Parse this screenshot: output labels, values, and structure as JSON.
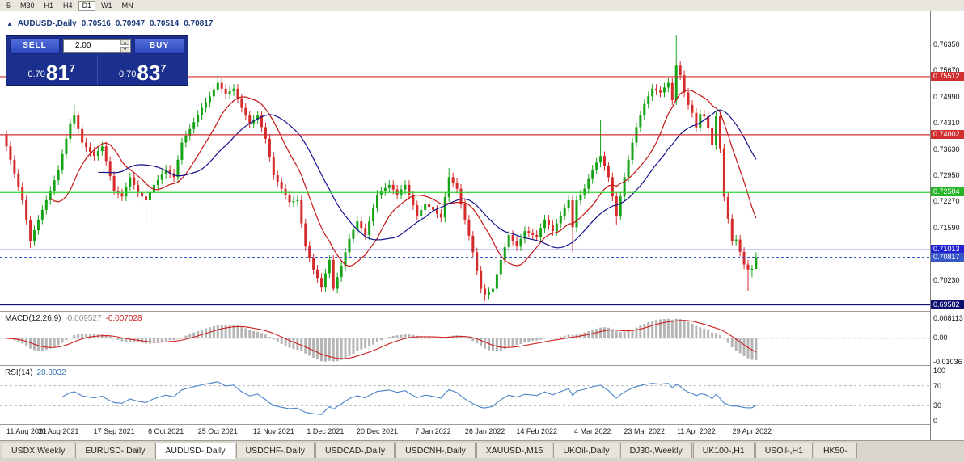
{
  "toolbar": {
    "periods": [
      {
        "label": "5",
        "active": false
      },
      {
        "label": "M30",
        "active": false
      },
      {
        "label": "H1",
        "active": false
      },
      {
        "label": "H4",
        "active": false
      },
      {
        "label": "D1",
        "active": true
      },
      {
        "label": "W1",
        "active": false
      },
      {
        "label": "MN",
        "active": false
      }
    ]
  },
  "ohlc_header": {
    "marker": "▲",
    "symbol": "AUDUSD-,Daily",
    "open": "0.70516",
    "high": "0.70947",
    "low": "0.70514",
    "close": "0.70817"
  },
  "trade_panel": {
    "sell_label": "SELL",
    "buy_label": "BUY",
    "volume": "2.00",
    "sell_price": {
      "prefix": "0.70",
      "big": "81",
      "sup": "7"
    },
    "buy_price": {
      "prefix": "0.70",
      "big": "83",
      "sup": "7"
    }
  },
  "price_axis_labels": [
    "0.76350",
    "0.75670",
    "0.74990",
    "0.74310",
    "0.73630",
    "0.72950",
    "0.72270",
    "0.71590",
    "0.70910",
    "0.70230",
    "0.69550"
  ],
  "macd_panel": {
    "title": "MACD(12,26,9)",
    "main_value": "-0.009527",
    "signal_value": "-0.007028",
    "axis_labels": [
      "0.008113",
      "0.00",
      "-0.01036"
    ]
  },
  "rsi_panel": {
    "title": "RSI(14)",
    "value": "28.8032",
    "axis_labels": [
      "100",
      "70",
      "30",
      "0"
    ],
    "levels": [
      70,
      30
    ]
  },
  "date_axis": {
    "labels": [
      {
        "i": 0,
        "text": "11 Aug 2021"
      },
      {
        "i": 13,
        "text": "30 Aug 2021"
      },
      {
        "i": 27,
        "text": "17 Sep 2021"
      },
      {
        "i": 40,
        "text": "6 Oct 2021"
      },
      {
        "i": 53,
        "text": "25 Oct 2021"
      },
      {
        "i": 67,
        "text": "12 Nov 2021"
      },
      {
        "i": 80,
        "text": "1 Dec 2021"
      },
      {
        "i": 93,
        "text": "20 Dec 2021"
      },
      {
        "i": 107,
        "text": "7 Jan 2022"
      },
      {
        "i": 120,
        "text": "26 Jan 2022"
      },
      {
        "i": 133,
        "text": "14 Feb 2022"
      },
      {
        "i": 147,
        "text": "4 Mar 2022"
      },
      {
        "i": 160,
        "text": "23 Mar 2022"
      },
      {
        "i": 173,
        "text": "11 Apr 2022"
      },
      {
        "i": 187,
        "text": "29 Apr 2022"
      }
    ]
  },
  "tabbar": {
    "active": "AUDUSD-,Daily",
    "tabs": [
      "USDX,Weekly",
      "EURUSD-,Daily",
      "AUDUSD-,Daily",
      "USDCHF-,Daily",
      "USDCAD-,Daily",
      "USDCNH-,Daily",
      "XAUUSD-,M15",
      "UKOil-,Daily",
      "DJ30-,Weekly",
      "UK100-,H1",
      "USOil-,H1",
      "HK50-"
    ]
  },
  "chart_data": {
    "type": "candlestick",
    "symbol": "AUDUSD-",
    "timeframe": "Daily",
    "title": "AUDUSD-,Daily",
    "last_ohlc": {
      "open": 0.70516,
      "high": 0.70947,
      "low": 0.70514,
      "close": 0.70817
    },
    "bid": 0.70817,
    "ask": 0.70837,
    "colors": {
      "up": "#17a317",
      "down": "#d52b2b",
      "ma_fast": "#c41414",
      "ma_slow": "#13138c",
      "macd_hist": "#b5b5b5",
      "macd_signal": "#cc2020",
      "rsi": "#4a82c8"
    },
    "moving_averages": [
      {
        "period": 12,
        "color": "#c41414"
      },
      {
        "period": 24,
        "color": "#13138c"
      }
    ],
    "hlines": [
      {
        "price": 0.75512,
        "color": "#d23030",
        "dash": false
      },
      {
        "price": 0.74002,
        "color": "#d23030",
        "dash": false
      },
      {
        "price": 0.72504,
        "color": "#2fd22f",
        "dash": false
      },
      {
        "price": 0.71013,
        "color": "#2424d2",
        "dash": false
      },
      {
        "price": 0.69582,
        "color": "#0d0d72",
        "dash": false
      },
      {
        "price": 0.70817,
        "color": "#3858c8",
        "dash": true
      }
    ],
    "badges": [
      {
        "label": "0.75512",
        "price": 0.75512,
        "color": "#d23030"
      },
      {
        "label": "0.74002",
        "price": 0.74002,
        "color": "#d23030"
      },
      {
        "label": "0.72504",
        "price": 0.72504,
        "color": "#28b428"
      },
      {
        "label": "0.71013",
        "price": 0.71013,
        "color": "#2424d2"
      },
      {
        "label": "0.70817",
        "price": 0.70817,
        "color": "#3858c8"
      },
      {
        "label": "0.69582",
        "price": 0.69582,
        "color": "#0d0d72"
      }
    ],
    "candles": [
      [
        0.74,
        0.7412,
        0.7358,
        0.737
      ],
      [
        0.737,
        0.7382,
        0.7323,
        0.7335
      ],
      [
        0.7335,
        0.7347,
        0.7288,
        0.73
      ],
      [
        0.73,
        0.7312,
        0.7253,
        0.7265
      ],
      [
        0.7265,
        0.7277,
        0.7218,
        0.723
      ],
      [
        0.723,
        0.7242,
        0.7166,
        0.7178
      ],
      [
        0.7178,
        0.719,
        0.7106,
        0.7125
      ],
      [
        0.7125,
        0.7164,
        0.7113,
        0.7152
      ],
      [
        0.7152,
        0.7192,
        0.714,
        0.718
      ],
      [
        0.718,
        0.7217,
        0.7168,
        0.7205
      ],
      [
        0.7205,
        0.7242,
        0.7193,
        0.723
      ],
      [
        0.723,
        0.7267,
        0.7218,
        0.7255
      ],
      [
        0.7255,
        0.7294,
        0.7243,
        0.7282
      ],
      [
        0.7282,
        0.7322,
        0.727,
        0.731
      ],
      [
        0.731,
        0.7362,
        0.7298,
        0.735
      ],
      [
        0.735,
        0.7402,
        0.7338,
        0.739
      ],
      [
        0.739,
        0.7442,
        0.7378,
        0.743
      ],
      [
        0.743,
        0.7478,
        0.7418,
        0.745
      ],
      [
        0.745,
        0.7462,
        0.7403,
        0.7415
      ],
      [
        0.7415,
        0.7427,
        0.7368,
        0.738
      ],
      [
        0.738,
        0.7392,
        0.7356,
        0.7368
      ],
      [
        0.7368,
        0.738,
        0.7344,
        0.7356
      ],
      [
        0.7356,
        0.7368,
        0.7333,
        0.7345
      ],
      [
        0.7345,
        0.737,
        0.7333,
        0.7358
      ],
      [
        0.7358,
        0.7382,
        0.7346,
        0.737
      ],
      [
        0.737,
        0.7382,
        0.732,
        0.7332
      ],
      [
        0.7332,
        0.7344,
        0.7281,
        0.7293
      ],
      [
        0.7293,
        0.7305,
        0.7243,
        0.7255
      ],
      [
        0.7255,
        0.7267,
        0.7236,
        0.7248
      ],
      [
        0.7248,
        0.726,
        0.7228,
        0.724
      ],
      [
        0.724,
        0.7277,
        0.7228,
        0.7265
      ],
      [
        0.7265,
        0.7302,
        0.7253,
        0.729
      ],
      [
        0.729,
        0.7302,
        0.7258,
        0.727
      ],
      [
        0.727,
        0.7282,
        0.7238,
        0.725
      ],
      [
        0.725,
        0.7262,
        0.7228,
        0.724
      ],
      [
        0.724,
        0.7252,
        0.717,
        0.723
      ],
      [
        0.723,
        0.7262,
        0.7218,
        0.725
      ],
      [
        0.725,
        0.7282,
        0.7238,
        0.727
      ],
      [
        0.727,
        0.7295,
        0.7258,
        0.7283
      ],
      [
        0.7283,
        0.7309,
        0.7271,
        0.7297
      ],
      [
        0.7297,
        0.7322,
        0.7285,
        0.731
      ],
      [
        0.731,
        0.7322,
        0.7288,
        0.73
      ],
      [
        0.73,
        0.7312,
        0.7278,
        0.729
      ],
      [
        0.729,
        0.7347,
        0.7278,
        0.7335
      ],
      [
        0.7335,
        0.7392,
        0.7323,
        0.738
      ],
      [
        0.738,
        0.741,
        0.7368,
        0.7398
      ],
      [
        0.7398,
        0.7427,
        0.7386,
        0.7415
      ],
      [
        0.7415,
        0.7445,
        0.7403,
        0.7433
      ],
      [
        0.7433,
        0.7464,
        0.7421,
        0.7452
      ],
      [
        0.7452,
        0.7482,
        0.744,
        0.747
      ],
      [
        0.747,
        0.7497,
        0.7458,
        0.7485
      ],
      [
        0.7485,
        0.7512,
        0.7473,
        0.75
      ],
      [
        0.75,
        0.753,
        0.7488,
        0.7518
      ],
      [
        0.7518,
        0.7555,
        0.7506,
        0.7535
      ],
      [
        0.7535,
        0.7547,
        0.7508,
        0.752
      ],
      [
        0.752,
        0.7532,
        0.7493,
        0.7505
      ],
      [
        0.7505,
        0.7525,
        0.7493,
        0.7513
      ],
      [
        0.7513,
        0.7532,
        0.7501,
        0.752
      ],
      [
        0.752,
        0.7532,
        0.7483,
        0.7495
      ],
      [
        0.7495,
        0.7507,
        0.7458,
        0.747
      ],
      [
        0.747,
        0.7482,
        0.7438,
        0.745
      ],
      [
        0.745,
        0.7462,
        0.7418,
        0.743
      ],
      [
        0.743,
        0.7452,
        0.7418,
        0.744
      ],
      [
        0.744,
        0.7462,
        0.7428,
        0.745
      ],
      [
        0.745,
        0.7462,
        0.7408,
        0.742
      ],
      [
        0.742,
        0.7432,
        0.7378,
        0.739
      ],
      [
        0.739,
        0.7402,
        0.7331,
        0.7343
      ],
      [
        0.7343,
        0.7355,
        0.7283,
        0.7295
      ],
      [
        0.7295,
        0.7307,
        0.7266,
        0.7278
      ],
      [
        0.7278,
        0.729,
        0.7248,
        0.726
      ],
      [
        0.726,
        0.7272,
        0.7231,
        0.7243
      ],
      [
        0.7243,
        0.7255,
        0.7213,
        0.7225
      ],
      [
        0.7225,
        0.724,
        0.7213,
        0.7228
      ],
      [
        0.7228,
        0.7242,
        0.7216,
        0.723
      ],
      [
        0.723,
        0.7242,
        0.7158,
        0.717
      ],
      [
        0.717,
        0.7182,
        0.7098,
        0.711
      ],
      [
        0.711,
        0.7122,
        0.7068,
        0.708
      ],
      [
        0.708,
        0.7092,
        0.7038,
        0.705
      ],
      [
        0.705,
        0.7062,
        0.7016,
        0.7028
      ],
      [
        0.7028,
        0.704,
        0.6993,
        0.7005
      ],
      [
        0.7005,
        0.7052,
        0.6993,
        0.704
      ],
      [
        0.704,
        0.7087,
        0.7028,
        0.7075
      ],
      [
        0.7075,
        0.7087,
        0.6995,
        0.7
      ],
      [
        0.7,
        0.7042,
        0.6988,
        0.703
      ],
      [
        0.703,
        0.7072,
        0.7018,
        0.706
      ],
      [
        0.706,
        0.7107,
        0.7048,
        0.7095
      ],
      [
        0.7095,
        0.7142,
        0.7083,
        0.713
      ],
      [
        0.713,
        0.7165,
        0.7118,
        0.7153
      ],
      [
        0.7153,
        0.7187,
        0.7141,
        0.7175
      ],
      [
        0.7175,
        0.7187,
        0.7146,
        0.7158
      ],
      [
        0.7158,
        0.717,
        0.7128,
        0.714
      ],
      [
        0.714,
        0.7187,
        0.7128,
        0.7175
      ],
      [
        0.7175,
        0.7222,
        0.7163,
        0.721
      ],
      [
        0.721,
        0.7257,
        0.7198,
        0.7245
      ],
      [
        0.7245,
        0.7265,
        0.7233,
        0.7253
      ],
      [
        0.7253,
        0.7274,
        0.7241,
        0.7262
      ],
      [
        0.7262,
        0.7282,
        0.725,
        0.727
      ],
      [
        0.727,
        0.7282,
        0.7246,
        0.7258
      ],
      [
        0.7258,
        0.727,
        0.7233,
        0.7245
      ],
      [
        0.7245,
        0.727,
        0.7233,
        0.7258
      ],
      [
        0.7258,
        0.7282,
        0.7246,
        0.727
      ],
      [
        0.727,
        0.7282,
        0.7231,
        0.7243
      ],
      [
        0.7243,
        0.7255,
        0.7205,
        0.7217
      ],
      [
        0.7217,
        0.7229,
        0.7178,
        0.719
      ],
      [
        0.719,
        0.7217,
        0.7178,
        0.7205
      ],
      [
        0.7205,
        0.7232,
        0.7193,
        0.722
      ],
      [
        0.722,
        0.7232,
        0.7201,
        0.7213
      ],
      [
        0.7213,
        0.7225,
        0.7193,
        0.7205
      ],
      [
        0.7205,
        0.7217,
        0.7183,
        0.7195
      ],
      [
        0.7195,
        0.7207,
        0.7173,
        0.7185
      ],
      [
        0.7185,
        0.725,
        0.7173,
        0.7238
      ],
      [
        0.7238,
        0.7314,
        0.7226,
        0.729
      ],
      [
        0.729,
        0.7302,
        0.7263,
        0.7275
      ],
      [
        0.7275,
        0.7287,
        0.7248,
        0.726
      ],
      [
        0.726,
        0.7272,
        0.7208,
        0.722
      ],
      [
        0.722,
        0.7232,
        0.7168,
        0.718
      ],
      [
        0.718,
        0.7192,
        0.7126,
        0.7138
      ],
      [
        0.7138,
        0.715,
        0.7083,
        0.7095
      ],
      [
        0.7095,
        0.7107,
        0.7036,
        0.7048
      ],
      [
        0.7048,
        0.706,
        0.6988,
        0.7
      ],
      [
        0.7,
        0.7012,
        0.6968,
        0.6985
      ],
      [
        0.6985,
        0.7005,
        0.6973,
        0.6993
      ],
      [
        0.6993,
        0.7012,
        0.6981,
        0.7
      ],
      [
        0.7,
        0.705,
        0.6988,
        0.7038
      ],
      [
        0.7038,
        0.7087,
        0.7026,
        0.7075
      ],
      [
        0.7075,
        0.712,
        0.7063,
        0.7108
      ],
      [
        0.7108,
        0.7152,
        0.7096,
        0.714
      ],
      [
        0.714,
        0.7152,
        0.7113,
        0.7125
      ],
      [
        0.7125,
        0.7137,
        0.7098,
        0.711
      ],
      [
        0.711,
        0.7142,
        0.7098,
        0.713
      ],
      [
        0.713,
        0.7162,
        0.7118,
        0.715
      ],
      [
        0.715,
        0.7162,
        0.7133,
        0.7145
      ],
      [
        0.7145,
        0.7157,
        0.7128,
        0.714
      ],
      [
        0.714,
        0.7152,
        0.7123,
        0.7135
      ],
      [
        0.7135,
        0.717,
        0.7123,
        0.7158
      ],
      [
        0.7158,
        0.7192,
        0.7146,
        0.718
      ],
      [
        0.718,
        0.7192,
        0.7153,
        0.7165
      ],
      [
        0.7165,
        0.7177,
        0.7138,
        0.715
      ],
      [
        0.715,
        0.7182,
        0.7138,
        0.717
      ],
      [
        0.717,
        0.7202,
        0.7158,
        0.719
      ],
      [
        0.719,
        0.7222,
        0.7178,
        0.721
      ],
      [
        0.721,
        0.7242,
        0.7198,
        0.723
      ],
      [
        0.723,
        0.7242,
        0.7095,
        0.716
      ],
      [
        0.716,
        0.7242,
        0.7148,
        0.723
      ],
      [
        0.723,
        0.7257,
        0.7218,
        0.7245
      ],
      [
        0.7245,
        0.7272,
        0.7233,
        0.726
      ],
      [
        0.726,
        0.7297,
        0.7248,
        0.7285
      ],
      [
        0.7285,
        0.7322,
        0.7273,
        0.731
      ],
      [
        0.731,
        0.734,
        0.7298,
        0.7328
      ],
      [
        0.7328,
        0.744,
        0.7316,
        0.7345
      ],
      [
        0.7345,
        0.7357,
        0.7306,
        0.7318
      ],
      [
        0.7318,
        0.733,
        0.7278,
        0.729
      ],
      [
        0.729,
        0.7302,
        0.7228,
        0.724
      ],
      [
        0.724,
        0.7252,
        0.7165,
        0.719
      ],
      [
        0.719,
        0.7252,
        0.7178,
        0.724
      ],
      [
        0.724,
        0.7302,
        0.7228,
        0.729
      ],
      [
        0.729,
        0.7347,
        0.7278,
        0.7335
      ],
      [
        0.7335,
        0.7392,
        0.7323,
        0.738
      ],
      [
        0.738,
        0.7432,
        0.7368,
        0.742
      ],
      [
        0.742,
        0.7462,
        0.7408,
        0.745
      ],
      [
        0.745,
        0.7492,
        0.7438,
        0.748
      ],
      [
        0.748,
        0.7512,
        0.7468,
        0.75
      ],
      [
        0.75,
        0.7532,
        0.7488,
        0.752
      ],
      [
        0.752,
        0.7532,
        0.7503,
        0.7515
      ],
      [
        0.7515,
        0.7527,
        0.7498,
        0.751
      ],
      [
        0.751,
        0.7535,
        0.7498,
        0.7523
      ],
      [
        0.7523,
        0.7547,
        0.7511,
        0.7535
      ],
      [
        0.7535,
        0.7547,
        0.7478,
        0.749
      ],
      [
        0.749,
        0.766,
        0.7478,
        0.758
      ],
      [
        0.758,
        0.7592,
        0.7543,
        0.7555
      ],
      [
        0.7555,
        0.7567,
        0.7498,
        0.751
      ],
      [
        0.751,
        0.7522,
        0.7466,
        0.7478
      ],
      [
        0.7478,
        0.749,
        0.7445,
        0.7457
      ],
      [
        0.7457,
        0.7469,
        0.7407,
        0.7419
      ],
      [
        0.7419,
        0.7466,
        0.7407,
        0.7454
      ],
      [
        0.7454,
        0.7466,
        0.7436,
        0.7448
      ],
      [
        0.7448,
        0.746,
        0.7405,
        0.7417
      ],
      [
        0.7417,
        0.7429,
        0.7361,
        0.7373
      ],
      [
        0.7373,
        0.746,
        0.7361,
        0.7448
      ],
      [
        0.7448,
        0.746,
        0.7353,
        0.7365
      ],
      [
        0.7365,
        0.7377,
        0.7227,
        0.7239
      ],
      [
        0.7239,
        0.7251,
        0.717,
        0.7182
      ],
      [
        0.7182,
        0.7194,
        0.7113,
        0.7125
      ],
      [
        0.7125,
        0.714,
        0.7113,
        0.7128
      ],
      [
        0.7128,
        0.714,
        0.7084,
        0.7096
      ],
      [
        0.7096,
        0.7108,
        0.7051,
        0.7063
      ],
      [
        0.7063,
        0.7075,
        0.6995,
        0.705
      ],
      [
        0.705,
        0.7062,
        0.703,
        0.70516
      ],
      [
        0.70516,
        0.70947,
        0.70514,
        0.70817
      ]
    ]
  }
}
